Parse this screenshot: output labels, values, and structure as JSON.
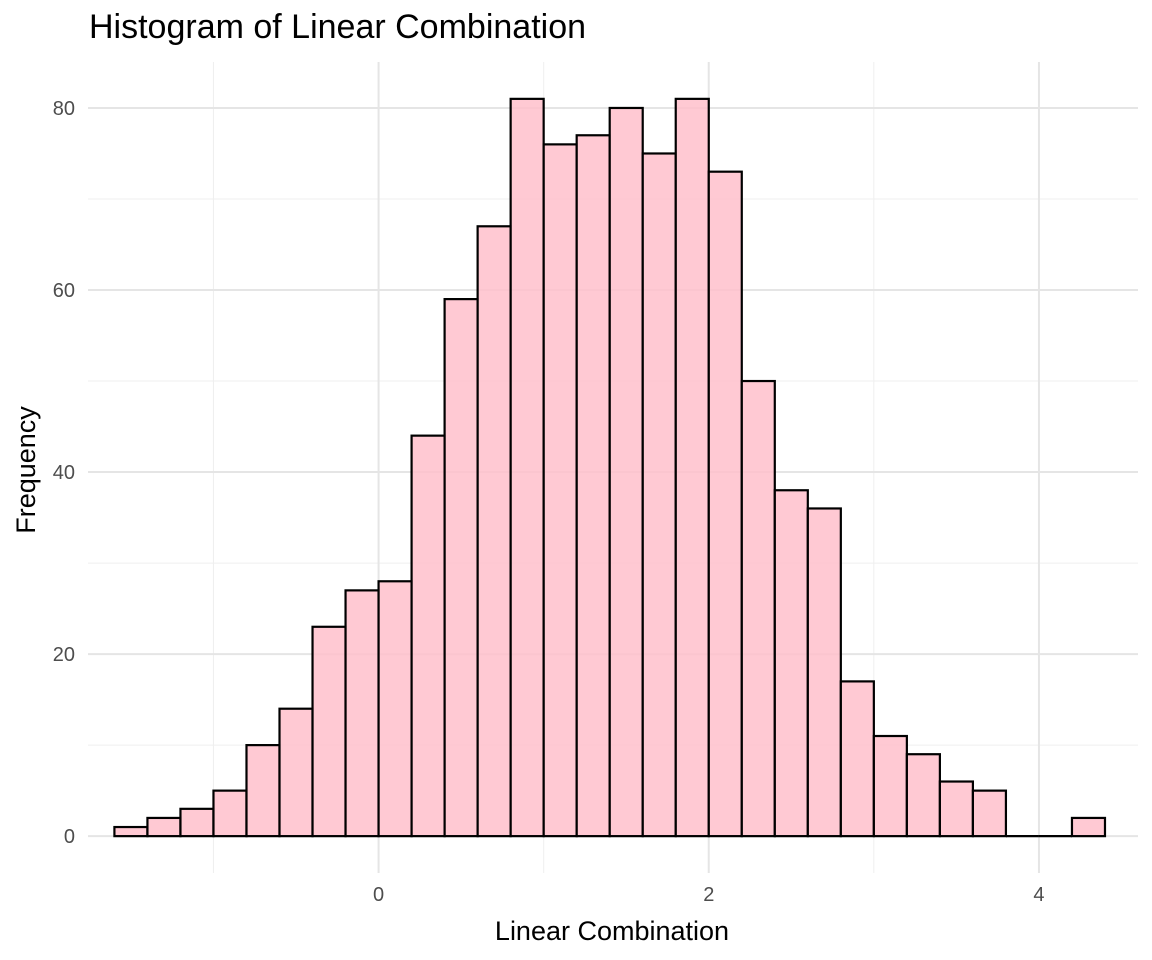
{
  "chart_data": {
    "type": "bar",
    "title": "Histogram of Linear Combination",
    "xlabel": "Linear Combination",
    "ylabel": "Frequency",
    "bin_width": 0.2,
    "bins": [
      {
        "x0": -1.6,
        "x1": -1.4,
        "count": 1
      },
      {
        "x0": -1.4,
        "x1": -1.2,
        "count": 2
      },
      {
        "x0": -1.2,
        "x1": -1.0,
        "count": 3
      },
      {
        "x0": -1.0,
        "x1": -0.8,
        "count": 5
      },
      {
        "x0": -0.8,
        "x1": -0.6,
        "count": 10
      },
      {
        "x0": -0.6,
        "x1": -0.4,
        "count": 14
      },
      {
        "x0": -0.4,
        "x1": -0.2,
        "count": 23
      },
      {
        "x0": -0.2,
        "x1": 0.0,
        "count": 27
      },
      {
        "x0": 0.0,
        "x1": 0.2,
        "count": 28
      },
      {
        "x0": 0.2,
        "x1": 0.4,
        "count": 44
      },
      {
        "x0": 0.4,
        "x1": 0.6,
        "count": 59
      },
      {
        "x0": 0.6,
        "x1": 0.8,
        "count": 67
      },
      {
        "x0": 0.8,
        "x1": 1.0,
        "count": 81
      },
      {
        "x0": 1.0,
        "x1": 1.2,
        "count": 76
      },
      {
        "x0": 1.2,
        "x1": 1.4,
        "count": 77
      },
      {
        "x0": 1.4,
        "x1": 1.6,
        "count": 80
      },
      {
        "x0": 1.6,
        "x1": 1.8,
        "count": 75
      },
      {
        "x0": 1.8,
        "x1": 2.0,
        "count": 81
      },
      {
        "x0": 2.0,
        "x1": 2.2,
        "count": 73
      },
      {
        "x0": 2.2,
        "x1": 2.4,
        "count": 50
      },
      {
        "x0": 2.4,
        "x1": 2.6,
        "count": 38
      },
      {
        "x0": 2.6,
        "x1": 2.8,
        "count": 36
      },
      {
        "x0": 2.8,
        "x1": 3.0,
        "count": 17
      },
      {
        "x0": 3.0,
        "x1": 3.2,
        "count": 11
      },
      {
        "x0": 3.2,
        "x1": 3.4,
        "count": 9
      },
      {
        "x0": 3.4,
        "x1": 3.6,
        "count": 6
      },
      {
        "x0": 3.6,
        "x1": 3.8,
        "count": 5
      },
      {
        "x0": 3.8,
        "x1": 4.0,
        "count": 0
      },
      {
        "x0": 4.0,
        "x1": 4.2,
        "count": 0
      },
      {
        "x0": 4.2,
        "x1": 4.4,
        "count": 2
      }
    ],
    "x_ticks": [
      0,
      2,
      4
    ],
    "x_tick_labels": [
      "0",
      "2",
      "4"
    ],
    "x_minor_gridlines": [
      -1,
      1,
      3
    ],
    "xlim": [
      -1.76,
      4.6
    ],
    "y_ticks": [
      0,
      20,
      40,
      60,
      80
    ],
    "y_tick_labels": [
      "0",
      "20",
      "40",
      "60",
      "80"
    ],
    "y_minor_gridlines": [
      10,
      30,
      50,
      70
    ],
    "ylim": [
      -4.05,
      85.05
    ],
    "grid": true,
    "legend": "none",
    "colors": {
      "bar_fill": "#ffc0cb",
      "bar_outline": "#000000",
      "grid": "#e5e5e5"
    }
  }
}
